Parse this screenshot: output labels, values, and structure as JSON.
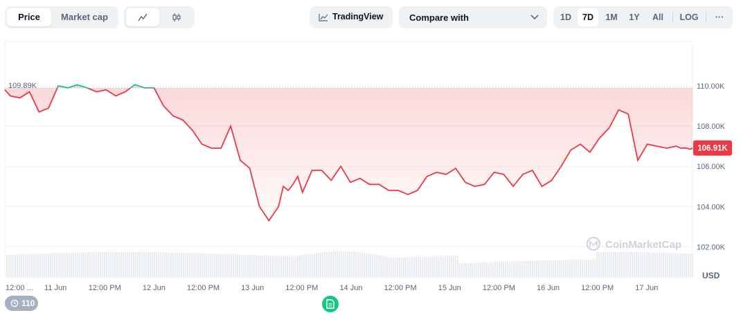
{
  "toolbar": {
    "view_tabs": [
      {
        "label": "Price",
        "active": true
      },
      {
        "label": "Market cap",
        "active": false
      }
    ],
    "chart_style": [
      {
        "icon": "line-chart-icon",
        "active": true
      },
      {
        "icon": "candlestick-icon",
        "active": false
      }
    ],
    "tradingview_label": "TradingView",
    "compare_label": "Compare with",
    "ranges": [
      {
        "label": "1D",
        "active": false
      },
      {
        "label": "7D",
        "active": true
      },
      {
        "label": "1M",
        "active": false
      },
      {
        "label": "1Y",
        "active": false
      },
      {
        "label": "All",
        "active": false
      }
    ],
    "log_label": "LOG",
    "more_label": "···"
  },
  "badges": {
    "history_count": "110"
  },
  "watermark": "CoinMarketCap",
  "colors": {
    "up": "#16c784",
    "down": "#ea3943",
    "grid": "#eff2f5",
    "text": "#58667e"
  },
  "chart_data": {
    "type": "line",
    "currency": "USD",
    "open_price": 109890,
    "open_label": "109.89K",
    "last_price": 106910,
    "last_label": "106.91K",
    "ylim": [
      100500,
      112200
    ],
    "yticks": [
      102000,
      104000,
      106000,
      108000,
      110000
    ],
    "ytick_labels": [
      "102.00K",
      "104.00K",
      "106.00K",
      "108.00K",
      "110.00K"
    ],
    "xlim": [
      "2025-06-10T11:40",
      "2025-06-17T11:10"
    ],
    "xticks": [
      {
        "t": "2025-06-10T12:00",
        "label": "12:00 ..."
      },
      {
        "t": "2025-06-11T00:00",
        "label": "11 Jun"
      },
      {
        "t": "2025-06-11T12:00",
        "label": "12:00 PM"
      },
      {
        "t": "2025-06-12T00:00",
        "label": "12 Jun"
      },
      {
        "t": "2025-06-12T12:00",
        "label": "12:00 PM"
      },
      {
        "t": "2025-06-13T00:00",
        "label": "13 Jun"
      },
      {
        "t": "2025-06-13T12:00",
        "label": "12:00 PM"
      },
      {
        "t": "2025-06-14T00:00",
        "label": "14 Jun"
      },
      {
        "t": "2025-06-14T12:00",
        "label": "12:00 PM"
      },
      {
        "t": "2025-06-15T00:00",
        "label": "15 Jun"
      },
      {
        "t": "2025-06-15T12:00",
        "label": "12:00 PM"
      },
      {
        "t": "2025-06-16T00:00",
        "label": "16 Jun"
      },
      {
        "t": "2025-06-16T12:00",
        "label": "12:00 PM"
      },
      {
        "t": "2025-06-17T00:00",
        "label": "17 Jun"
      }
    ],
    "series": [
      {
        "x": [
          "2025-06-10T11:40",
          "2025-06-10T13:00",
          "2025-06-10T15:20",
          "2025-06-10T17:40",
          "2025-06-10T20:00",
          "2025-06-10T21:10",
          "2025-06-10T22:20",
          "2025-06-11T00:40",
          "2025-06-11T03:00",
          "2025-06-11T05:20",
          "2025-06-11T07:40",
          "2025-06-11T10:00",
          "2025-06-11T12:20",
          "2025-06-11T14:40",
          "2025-06-11T17:00",
          "2025-06-11T19:20",
          "2025-06-11T21:40",
          "2025-06-12T00:00",
          "2025-06-12T02:20",
          "2025-06-12T04:40",
          "2025-06-12T07:00",
          "2025-06-12T09:20",
          "2025-06-12T11:40",
          "2025-06-12T14:00",
          "2025-06-12T16:20",
          "2025-06-12T18:40",
          "2025-06-12T21:00",
          "2025-06-12T23:20",
          "2025-06-13T01:40",
          "2025-06-13T04:00",
          "2025-06-13T06:20",
          "2025-06-13T07:30",
          "2025-06-13T08:40",
          "2025-06-13T09:50",
          "2025-06-13T11:00",
          "2025-06-13T12:10",
          "2025-06-13T14:30",
          "2025-06-13T16:50",
          "2025-06-13T19:10",
          "2025-06-13T21:30",
          "2025-06-13T23:50",
          "2025-06-14T02:10",
          "2025-06-14T04:30",
          "2025-06-14T06:50",
          "2025-06-14T09:10",
          "2025-06-14T11:30",
          "2025-06-14T13:50",
          "2025-06-14T16:10",
          "2025-06-14T18:30",
          "2025-06-14T20:50",
          "2025-06-14T23:10",
          "2025-06-15T01:30",
          "2025-06-15T03:50",
          "2025-06-15T06:10",
          "2025-06-15T08:30",
          "2025-06-15T10:50",
          "2025-06-15T13:10",
          "2025-06-15T15:30",
          "2025-06-15T17:50",
          "2025-06-15T20:10",
          "2025-06-15T22:30",
          "2025-06-16T00:50",
          "2025-06-16T03:10",
          "2025-06-16T05:30",
          "2025-06-16T07:50",
          "2025-06-16T10:10",
          "2025-06-16T12:30",
          "2025-06-16T14:50",
          "2025-06-16T17:10",
          "2025-06-16T19:30",
          "2025-06-16T21:50",
          "2025-06-17T00:10",
          "2025-06-17T02:30",
          "2025-06-17T04:50",
          "2025-06-17T07:10",
          "2025-06-17T08:20",
          "2025-06-17T09:30",
          "2025-06-17T10:40",
          "2025-06-17T11:10"
        ],
        "y": [
          109800,
          109500,
          109400,
          109700,
          108700,
          108800,
          108900,
          110000,
          109900,
          110050,
          109900,
          109700,
          109800,
          109500,
          109700,
          110060,
          109900,
          109900,
          109000,
          108500,
          108300,
          107800,
          107100,
          106900,
          106900,
          108000,
          106300,
          105900,
          104000,
          103300,
          104000,
          105000,
          104800,
          105100,
          105500,
          104700,
          105800,
          105800,
          105300,
          106000,
          105200,
          105400,
          105100,
          105100,
          104800,
          104800,
          104600,
          104800,
          105500,
          105700,
          105600,
          105900,
          105200,
          105000,
          105100,
          105700,
          105600,
          105000,
          105600,
          105800,
          105000,
          105300,
          106000,
          106800,
          107100,
          106700,
          107400,
          107900,
          108800,
          108600,
          106300,
          107100,
          107000,
          106900,
          107000,
          106900,
          106910,
          106850,
          106910
        ]
      }
    ]
  }
}
